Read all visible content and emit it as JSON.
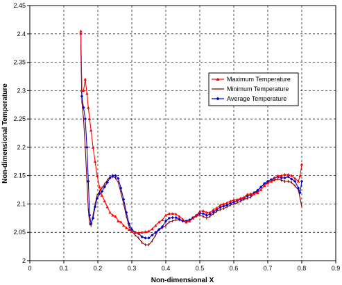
{
  "chart_data": {
    "type": "line",
    "title": "",
    "xlabel": "Non-dimensional X",
    "ylabel": "Non-dimensional Temperature",
    "xlim": [
      0,
      0.9
    ],
    "ylim": [
      2.0,
      2.45
    ],
    "xticks": [
      "0",
      "0.1",
      "0.2",
      "0.3",
      "0.4",
      "0.5",
      "0.6",
      "0.7",
      "0.8",
      "0.9"
    ],
    "yticks": [
      "2",
      "2.05",
      "2.1",
      "2.15",
      "2.2",
      "2.25",
      "2.3",
      "2.35",
      "2.4",
      "2.45"
    ],
    "grid": true,
    "legend_position": "right",
    "series": [
      {
        "name": "Maximum Temperature",
        "color": "#ff0000",
        "marker": "triangle",
        "x": [
          0.15,
          0.153,
          0.158,
          0.163,
          0.168,
          0.172,
          0.176,
          0.18,
          0.186,
          0.192,
          0.198,
          0.205,
          0.212,
          0.22,
          0.228,
          0.236,
          0.244,
          0.252,
          0.26,
          0.268,
          0.276,
          0.284,
          0.292,
          0.3,
          0.31,
          0.32,
          0.33,
          0.34,
          0.35,
          0.36,
          0.37,
          0.38,
          0.39,
          0.4,
          0.41,
          0.42,
          0.43,
          0.44,
          0.45,
          0.46,
          0.47,
          0.48,
          0.49,
          0.5,
          0.51,
          0.52,
          0.53,
          0.54,
          0.55,
          0.56,
          0.57,
          0.58,
          0.59,
          0.6,
          0.61,
          0.62,
          0.63,
          0.64,
          0.65,
          0.66,
          0.67,
          0.68,
          0.69,
          0.7,
          0.71,
          0.72,
          0.73,
          0.74,
          0.75,
          0.76,
          0.77,
          0.78,
          0.79,
          0.795,
          0.8
        ],
        "values": [
          2.405,
          2.3,
          2.3,
          2.32,
          2.295,
          2.27,
          2.25,
          2.23,
          2.2,
          2.175,
          2.15,
          2.13,
          2.115,
          2.105,
          2.095,
          2.085,
          2.08,
          2.078,
          2.07,
          2.068,
          2.062,
          2.058,
          2.055,
          2.052,
          2.05,
          2.049,
          2.05,
          2.051,
          2.052,
          2.056,
          2.062,
          2.068,
          2.072,
          2.08,
          2.083,
          2.083,
          2.082,
          2.078,
          2.073,
          2.068,
          2.07,
          2.075,
          2.08,
          2.087,
          2.088,
          2.085,
          2.085,
          2.09,
          2.093,
          2.098,
          2.1,
          2.102,
          2.105,
          2.107,
          2.108,
          2.11,
          2.112,
          2.117,
          2.118,
          2.118,
          2.12,
          2.125,
          2.132,
          2.137,
          2.14,
          2.145,
          2.15,
          2.15,
          2.152,
          2.152,
          2.15,
          2.145,
          2.14,
          2.15,
          2.17
        ]
      },
      {
        "name": "Minimum Temperature",
        "color": "#800000",
        "marker": "none",
        "x": [
          0.15,
          0.153,
          0.158,
          0.163,
          0.168,
          0.172,
          0.176,
          0.18,
          0.186,
          0.192,
          0.198,
          0.205,
          0.212,
          0.22,
          0.228,
          0.236,
          0.244,
          0.252,
          0.26,
          0.268,
          0.276,
          0.284,
          0.292,
          0.3,
          0.31,
          0.32,
          0.33,
          0.34,
          0.35,
          0.36,
          0.37,
          0.38,
          0.39,
          0.4,
          0.41,
          0.42,
          0.43,
          0.44,
          0.45,
          0.46,
          0.47,
          0.48,
          0.49,
          0.5,
          0.51,
          0.52,
          0.53,
          0.54,
          0.55,
          0.56,
          0.57,
          0.58,
          0.59,
          0.6,
          0.61,
          0.62,
          0.63,
          0.64,
          0.65,
          0.66,
          0.67,
          0.68,
          0.69,
          0.7,
          0.71,
          0.72,
          0.73,
          0.74,
          0.75,
          0.76,
          0.77,
          0.78,
          0.79,
          0.795,
          0.8
        ],
        "values": [
          2.38,
          2.28,
          2.25,
          2.2,
          2.14,
          2.09,
          2.065,
          2.062,
          2.08,
          2.1,
          2.115,
          2.122,
          2.128,
          2.135,
          2.142,
          2.148,
          2.148,
          2.146,
          2.138,
          2.12,
          2.1,
          2.078,
          2.06,
          2.052,
          2.045,
          2.04,
          2.032,
          2.028,
          2.028,
          2.035,
          2.045,
          2.055,
          2.058,
          2.062,
          2.068,
          2.07,
          2.072,
          2.072,
          2.07,
          2.068,
          2.07,
          2.075,
          2.078,
          2.08,
          2.078,
          2.075,
          2.078,
          2.083,
          2.087,
          2.09,
          2.092,
          2.095,
          2.098,
          2.1,
          2.102,
          2.105,
          2.108,
          2.11,
          2.112,
          2.118,
          2.122,
          2.13,
          2.135,
          2.138,
          2.14,
          2.142,
          2.144,
          2.142,
          2.14,
          2.14,
          2.138,
          2.132,
          2.125,
          2.11,
          2.095
        ]
      },
      {
        "name": "Average Temperature",
        "color": "#0000cc",
        "marker": "diamond",
        "x": [
          0.15,
          0.153,
          0.158,
          0.163,
          0.168,
          0.172,
          0.176,
          0.18,
          0.186,
          0.192,
          0.198,
          0.205,
          0.212,
          0.22,
          0.228,
          0.236,
          0.244,
          0.252,
          0.26,
          0.268,
          0.276,
          0.284,
          0.292,
          0.3,
          0.31,
          0.32,
          0.33,
          0.34,
          0.35,
          0.36,
          0.37,
          0.38,
          0.39,
          0.4,
          0.41,
          0.42,
          0.43,
          0.44,
          0.45,
          0.46,
          0.47,
          0.48,
          0.49,
          0.5,
          0.51,
          0.52,
          0.53,
          0.54,
          0.55,
          0.56,
          0.57,
          0.58,
          0.59,
          0.6,
          0.61,
          0.62,
          0.63,
          0.64,
          0.65,
          0.66,
          0.67,
          0.68,
          0.69,
          0.7,
          0.71,
          0.72,
          0.73,
          0.74,
          0.75,
          0.76,
          0.77,
          0.78,
          0.79,
          0.795,
          0.8
        ],
        "values": [
          2.4,
          2.29,
          2.27,
          2.25,
          2.2,
          2.14,
          2.08,
          2.065,
          2.075,
          2.095,
          2.11,
          2.118,
          2.122,
          2.13,
          2.138,
          2.146,
          2.15,
          2.15,
          2.145,
          2.128,
          2.108,
          2.085,
          2.065,
          2.055,
          2.05,
          2.048,
          2.042,
          2.04,
          2.04,
          2.045,
          2.05,
          2.055,
          2.06,
          2.07,
          2.075,
          2.076,
          2.076,
          2.073,
          2.07,
          2.07,
          2.072,
          2.076,
          2.08,
          2.083,
          2.083,
          2.08,
          2.082,
          2.086,
          2.09,
          2.094,
          2.096,
          2.098,
          2.101,
          2.103,
          2.106,
          2.108,
          2.11,
          2.114,
          2.116,
          2.12,
          2.124,
          2.13,
          2.136,
          2.14,
          2.143,
          2.146,
          2.148,
          2.146,
          2.146,
          2.148,
          2.144,
          2.14,
          2.128,
          2.12,
          2.14
        ]
      }
    ]
  }
}
